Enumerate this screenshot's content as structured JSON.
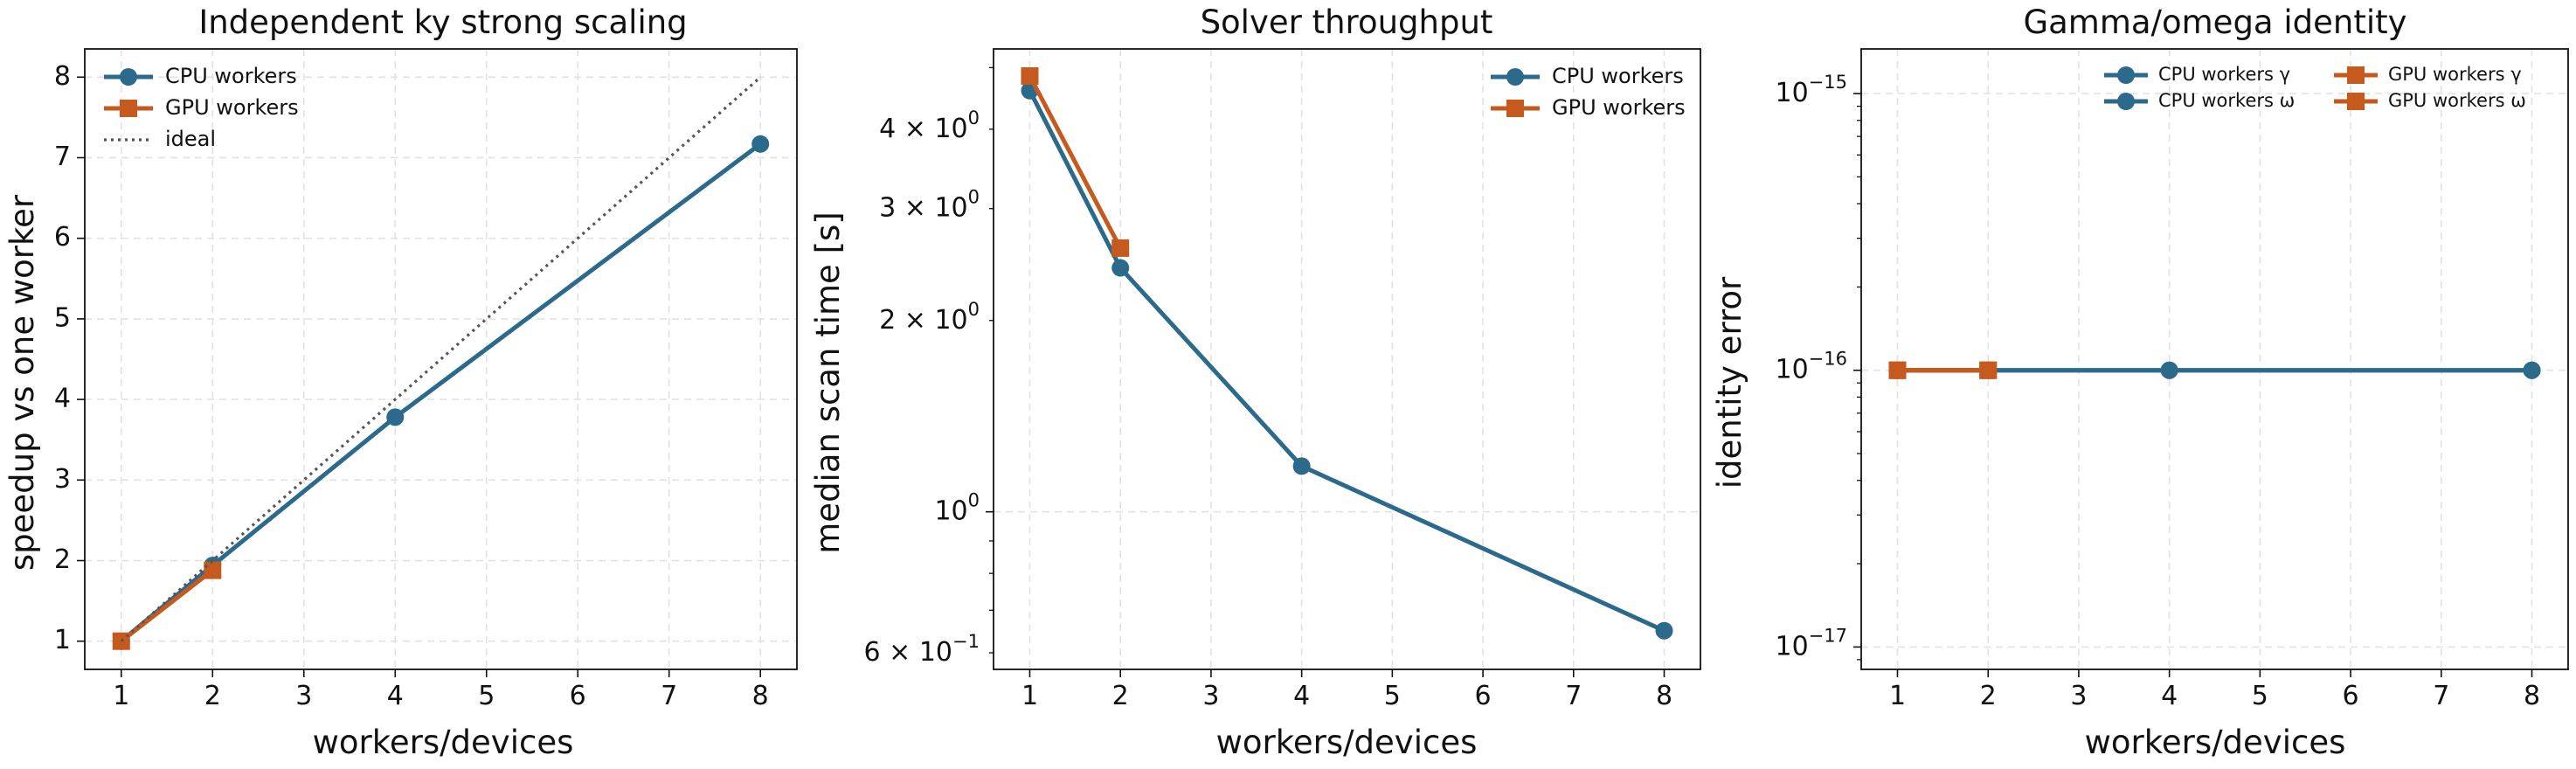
{
  "colors": {
    "cpu": "#2b6a8b",
    "gpu": "#c65a1e",
    "ideal": "#555555",
    "grid": "#e2e2e2"
  },
  "chart_data": [
    {
      "type": "line",
      "title": "Independent ky strong scaling",
      "xlabel": "workers/devices",
      "ylabel": "speedup vs one worker",
      "xlim": [
        0.6,
        8.4
      ],
      "ylim": [
        0.65,
        8.35
      ],
      "xticks": [
        1,
        2,
        3,
        4,
        5,
        6,
        7,
        8
      ],
      "yticks": [
        1,
        2,
        3,
        4,
        5,
        6,
        7,
        8
      ],
      "yscale": "linear",
      "grid": true,
      "legend_position": "top-left",
      "series": [
        {
          "name": "CPU workers",
          "color": "cpu",
          "marker": "circle",
          "style": "solid",
          "x": [
            1,
            2,
            4,
            8
          ],
          "y": [
            1.0,
            1.94,
            3.78,
            7.17
          ]
        },
        {
          "name": "GPU workers",
          "color": "gpu",
          "marker": "square",
          "style": "solid",
          "x": [
            1,
            2
          ],
          "y": [
            1.0,
            1.88
          ]
        },
        {
          "name": "ideal",
          "color": "ideal",
          "marker": "none",
          "style": "dotted",
          "x": [
            1,
            2,
            4,
            8
          ],
          "y": [
            1,
            2,
            4,
            8
          ]
        }
      ]
    },
    {
      "type": "line",
      "title": "Solver throughput",
      "xlabel": "workers/devices",
      "ylabel": "median scan time [s]",
      "xlim": [
        0.6,
        8.4
      ],
      "ylim": [
        0.565,
        5.35
      ],
      "yscale": "log",
      "xticks": [
        1,
        2,
        3,
        4,
        5,
        6,
        7,
        8
      ],
      "yticks_major": [
        {
          "value": 1.0,
          "mantissa": "",
          "exponent": "0",
          "base": "10"
        }
      ],
      "yticks_labeled_minor": [
        {
          "value": 0.6,
          "mantissa": "6 × ",
          "exponent": "−1",
          "base": "10"
        },
        {
          "value": 2.0,
          "mantissa": "2 × ",
          "exponent": "0",
          "base": "10"
        },
        {
          "value": 3.0,
          "mantissa": "3 × ",
          "exponent": "0",
          "base": "10"
        },
        {
          "value": 4.0,
          "mantissa": "4 × ",
          "exponent": "0",
          "base": "10"
        }
      ],
      "yticks_minor": [
        0.7,
        0.8,
        0.9,
        5.0
      ],
      "grid": true,
      "legend_position": "top-right",
      "series": [
        {
          "name": "CPU workers",
          "color": "cpu",
          "marker": "circle",
          "style": "solid",
          "x": [
            1,
            2,
            4,
            8
          ],
          "y": [
            4.6,
            2.42,
            1.18,
            0.65
          ]
        },
        {
          "name": "GPU workers",
          "color": "gpu",
          "marker": "square",
          "style": "solid",
          "x": [
            1,
            2
          ],
          "y": [
            4.85,
            2.6
          ]
        }
      ]
    },
    {
      "type": "line",
      "title": "Gamma/omega identity",
      "xlabel": "workers/devices",
      "ylabel": "identity error",
      "xlim": [
        0.6,
        8.4
      ],
      "ylim": [
        8.3e-18,
        1.45e-15
      ],
      "yscale": "log",
      "xticks": [
        1,
        2,
        3,
        4,
        5,
        6,
        7,
        8
      ],
      "yticks_major": [
        {
          "value": 1e-17,
          "mantissa": "",
          "exponent": "−17",
          "base": "10"
        },
        {
          "value": 1e-16,
          "mantissa": "",
          "exponent": "−16",
          "base": "10"
        },
        {
          "value": 1e-15,
          "mantissa": "",
          "exponent": "−15",
          "base": "10"
        }
      ],
      "grid": true,
      "legend_position": "top-right",
      "series": [
        {
          "name": "CPU workers γ",
          "color": "cpu",
          "marker": "circle",
          "style": "solid",
          "x": [
            1,
            2,
            4,
            8
          ],
          "y": [
            1e-16,
            1e-16,
            1e-16,
            1e-16
          ]
        },
        {
          "name": "CPU workers ω",
          "color": "cpu",
          "marker": "circle",
          "style": "solid",
          "x": [
            1,
            2,
            4,
            8
          ],
          "y": [
            1e-16,
            1e-16,
            1e-16,
            1e-16
          ]
        },
        {
          "name": "GPU workers γ",
          "color": "gpu",
          "marker": "square",
          "style": "solid",
          "x": [
            1,
            2
          ],
          "y": [
            1e-16,
            1e-16
          ]
        },
        {
          "name": "GPU workers ω",
          "color": "gpu",
          "marker": "square",
          "style": "solid",
          "x": [
            1,
            2
          ],
          "y": [
            1e-16,
            1e-16
          ]
        }
      ]
    }
  ]
}
